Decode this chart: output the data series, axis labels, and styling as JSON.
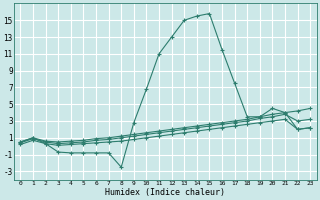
{
  "bg_color": "#cce8e8",
  "grid_color": "#ffffff",
  "line_color": "#2d7d6e",
  "xlabel": "Humidex (Indice chaleur)",
  "xlim": [
    -0.5,
    23.5
  ],
  "ylim": [
    -4,
    17
  ],
  "xticks": [
    0,
    1,
    2,
    3,
    4,
    5,
    6,
    7,
    8,
    9,
    10,
    11,
    12,
    13,
    14,
    15,
    16,
    17,
    18,
    19,
    20,
    21,
    22,
    23
  ],
  "yticks": [
    -3,
    -1,
    1,
    3,
    5,
    7,
    9,
    11,
    13,
    15
  ],
  "line1_x": [
    0,
    1,
    2,
    3,
    4,
    5,
    6,
    7,
    8,
    9,
    10,
    11,
    12,
    13,
    14,
    15,
    16,
    17,
    18,
    19,
    20,
    21,
    22,
    23
  ],
  "line1_y": [
    0.5,
    1.0,
    0.3,
    -0.7,
    -0.8,
    -0.8,
    -0.8,
    -0.8,
    -2.5,
    2.8,
    6.8,
    11.0,
    13.0,
    15.0,
    15.5,
    15.8,
    11.5,
    7.5,
    3.5,
    3.5,
    4.5,
    4.0,
    2.0,
    2.2
  ],
  "line2_x": [
    0,
    1,
    2,
    3,
    4,
    5,
    6,
    7,
    8,
    9,
    10,
    11,
    12,
    13,
    14,
    15,
    16,
    17,
    18,
    19,
    20,
    21,
    22,
    23
  ],
  "line2_y": [
    0.5,
    1.0,
    0.6,
    0.5,
    0.6,
    0.7,
    0.9,
    1.0,
    1.2,
    1.4,
    1.6,
    1.8,
    2.0,
    2.2,
    2.4,
    2.6,
    2.8,
    3.0,
    3.2,
    3.5,
    3.8,
    4.0,
    4.2,
    4.5
  ],
  "line3_x": [
    0,
    1,
    2,
    3,
    4,
    5,
    6,
    7,
    8,
    9,
    10,
    11,
    12,
    13,
    14,
    15,
    16,
    17,
    18,
    19,
    20,
    21,
    22,
    23
  ],
  "line3_y": [
    0.4,
    0.9,
    0.5,
    0.3,
    0.4,
    0.5,
    0.7,
    0.8,
    1.0,
    1.2,
    1.4,
    1.6,
    1.8,
    2.0,
    2.2,
    2.4,
    2.6,
    2.8,
    3.0,
    3.3,
    3.5,
    3.8,
    3.0,
    3.2
  ],
  "line4_x": [
    0,
    1,
    2,
    3,
    4,
    5,
    6,
    7,
    8,
    9,
    10,
    11,
    12,
    13,
    14,
    15,
    16,
    17,
    18,
    19,
    20,
    21,
    22,
    23
  ],
  "line4_y": [
    0.2,
    0.7,
    0.3,
    0.1,
    0.2,
    0.3,
    0.4,
    0.5,
    0.6,
    0.8,
    1.0,
    1.2,
    1.4,
    1.6,
    1.8,
    2.0,
    2.2,
    2.4,
    2.6,
    2.8,
    3.0,
    3.2,
    2.0,
    2.2
  ]
}
